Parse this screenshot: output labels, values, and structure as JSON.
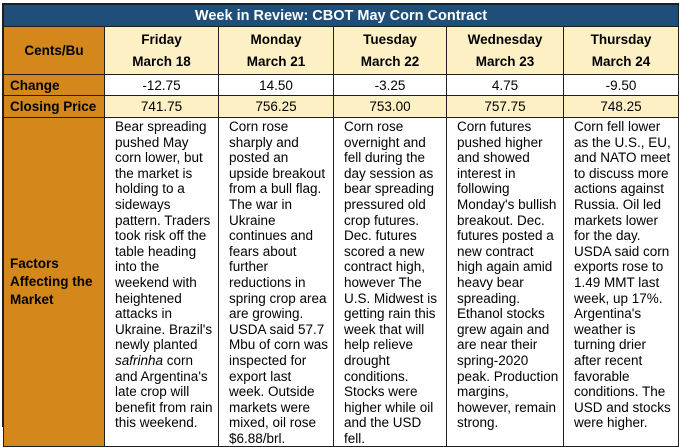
{
  "title": "Week in Review: CBOT May Corn Contract",
  "row_labels": {
    "units": "Cents/Bu",
    "change": "Change",
    "closing": "Closing Price",
    "factors": "Factors Affecting the Market"
  },
  "days": [
    {
      "day": "Friday",
      "date": "March 18",
      "change": "-12.75",
      "closing": "741.75",
      "factors_before": "Bear spreading pushed May corn lower, but the market is holding to a sideways pattern. Traders took risk off the table heading into the weekend with heightened attacks in Ukraine. Brazil's newly planted ",
      "factors_italic": "safrinha",
      "factors_after": " corn and Argentina's late crop will benefit from rain this weekend."
    },
    {
      "day": "Monday",
      "date": "March 21",
      "change": "14.50",
      "closing": "756.25",
      "factors_before": "Corn rose sharply and posted an upside breakout from a bull flag. The war in Ukraine continues and fears about further reductions in spring crop area are growing. USDA said 57.7 Mbu of corn was inspected for export last week. Outside markets were mixed, oil rose $6.88/brl.",
      "factors_italic": "",
      "factors_after": ""
    },
    {
      "day": "Tuesday",
      "date": "March 22",
      "change": "-3.25",
      "closing": "753.00",
      "factors_before": "Corn rose overnight and fell during the day session as bear spreading pressured old crop futures. Dec. futures scored a new contract high, however The U.S. Midwest is getting rain this week that will help relieve drought conditions. Stocks were higher while oil and the USD fell.",
      "factors_italic": "",
      "factors_after": ""
    },
    {
      "day": "Wednesday",
      "date": "March 23",
      "change": "4.75",
      "closing": "757.75",
      "factors_before": "Corn futures pushed higher and showed interest in following Monday's bullish breakout. Dec. futures posted a new contract high again amid heavy bear spreading. Ethanol stocks grew again and are near their spring-2020 peak. Production margins, however, remain strong.",
      "factors_italic": "",
      "factors_after": ""
    },
    {
      "day": "Thursday",
      "date": "March 24",
      "change": "-9.50",
      "closing": "748.25",
      "factors_before": "Corn fell lower as the U.S., EU, and NATO meet to discuss more actions against Russia. Oil led markets lower for the day. USDA said corn exports rose to 1.49 MMT last week, up 17%. Argentina's weather is turning drier after recent favorable conditions. The USD and stocks were higher.",
      "factors_italic": "",
      "factors_after": ""
    }
  ]
}
